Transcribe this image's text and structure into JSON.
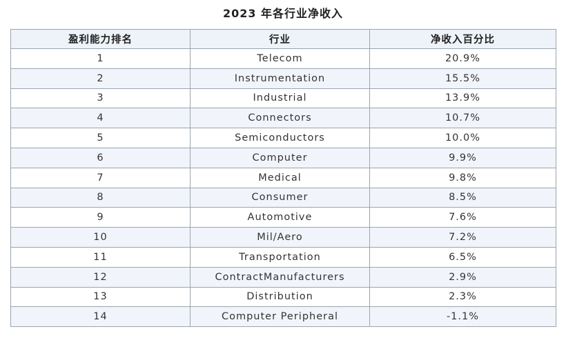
{
  "chart_data": {
    "type": "table",
    "title": "2023 年各行业净收入",
    "columns": [
      "盈利能力排名",
      "行业",
      "净收入百分比"
    ],
    "rows": [
      [
        "1",
        "Telecom",
        "20.9%"
      ],
      [
        "2",
        "Instrumentation",
        "15.5%"
      ],
      [
        "3",
        "Industrial",
        "13.9%"
      ],
      [
        "4",
        "Connectors",
        "10.7%"
      ],
      [
        "5",
        "Semiconductors",
        "10.0%"
      ],
      [
        "6",
        "Computer",
        "9.9%"
      ],
      [
        "7",
        "Medical",
        "9.8%"
      ],
      [
        "8",
        "Consumer",
        "8.5%"
      ],
      [
        "9",
        "Automotive",
        "7.6%"
      ],
      [
        "10",
        "Mil/Aero",
        "7.2%"
      ],
      [
        "11",
        "Transportation",
        "6.5%"
      ],
      [
        "12",
        "ContractManufacturers",
        "2.9%"
      ],
      [
        "13",
        "Distribution",
        "2.3%"
      ],
      [
        "14",
        "Computer Peripheral",
        "-1.1%"
      ]
    ]
  }
}
